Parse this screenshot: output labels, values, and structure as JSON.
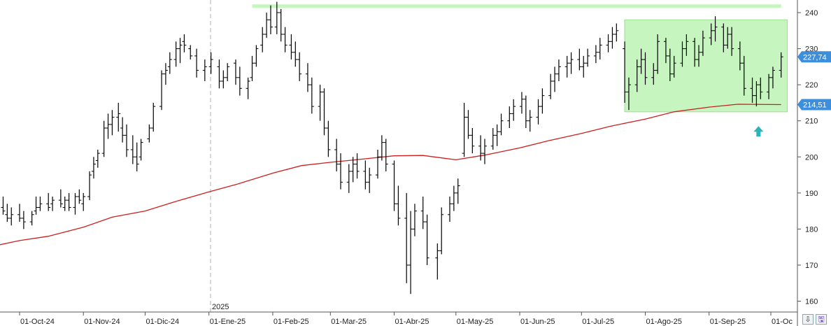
{
  "colors": {
    "background": "#ffffff",
    "bars": "#000000",
    "moving_average": "#cc1f1f",
    "range_fill": "#c6f5c0",
    "range_border": "#9be08f",
    "price_tag": "#3d8fdc",
    "arrow": "#2ab3b8",
    "grid": "#d8d8d8"
  },
  "icons": {
    "pin_button": "pin-icon",
    "save_button": "floppy-disk-icon"
  },
  "chart_data": {
    "type": "ohlc",
    "x_axis_labels": [
      "01-Oct-24",
      "01-Nov-24",
      "01-Dic-24",
      "01-Ene-25",
      "01-Feb-25",
      "01-Mar-25",
      "01-Abr-25",
      "01-May-25",
      "01-Jun-25",
      "01-Jul-25",
      "01-Ago-25",
      "01-Sep-25",
      "01-Oc"
    ],
    "year_marker": "2025",
    "y_ticks": [
      160,
      170,
      180,
      190,
      200,
      210,
      220,
      230,
      240
    ],
    "ylim": [
      157,
      243.5
    ],
    "price_labels": {
      "last_price": "227,74",
      "moving_average": "214,51"
    },
    "last_price_value": 227.74,
    "moving_average_value": 214.51,
    "resistance_line": {
      "from": "2025-01-22",
      "to": "2025-10-06",
      "value": 241.8
    },
    "range_box": {
      "from": "2025-07-22",
      "to": "2025-10-09",
      "high": 238,
      "low": 212.5
    },
    "arrow_marker": {
      "date": "2025-09-25",
      "value": 207
    },
    "moving_average_series": [
      [
        "2024-09-16",
        175
      ],
      [
        "2024-10-01",
        176.8
      ],
      [
        "2024-10-15",
        178
      ],
      [
        "2024-11-01",
        180.5
      ],
      [
        "2024-11-15",
        183.3
      ],
      [
        "2024-12-01",
        185
      ],
      [
        "2024-12-15",
        187.5
      ],
      [
        "2025-01-01",
        190.3
      ],
      [
        "2025-01-15",
        192.5
      ],
      [
        "2025-02-01",
        195.5
      ],
      [
        "2025-02-15",
        197.6
      ],
      [
        "2025-03-01",
        198.5
      ],
      [
        "2025-03-15",
        199.3
      ],
      [
        "2025-04-01",
        200.3
      ],
      [
        "2025-04-15",
        200.4
      ],
      [
        "2025-05-01",
        199.2
      ],
      [
        "2025-05-15",
        200.5
      ],
      [
        "2025-06-01",
        202.5
      ],
      [
        "2025-06-15",
        204.5
      ],
      [
        "2025-07-01",
        206.5
      ],
      [
        "2025-07-15",
        208.5
      ],
      [
        "2025-08-01",
        210.5
      ],
      [
        "2025-08-15",
        212.5
      ],
      [
        "2025-09-01",
        213.8
      ],
      [
        "2025-09-15",
        214.6
      ],
      [
        "2025-10-06",
        214.51
      ]
    ],
    "ohlc_bars": [
      [
        "2024-09-16",
        194,
        196,
        191,
        195
      ],
      [
        "2024-09-18",
        193,
        197,
        191,
        192
      ],
      [
        "2024-09-20",
        189,
        192,
        187,
        188
      ],
      [
        "2024-09-23",
        186,
        189,
        184,
        185
      ],
      [
        "2024-09-25",
        184,
        187,
        182,
        183
      ],
      [
        "2024-09-27",
        183,
        186,
        181,
        184
      ],
      [
        "2024-10-01",
        184,
        187,
        182,
        183
      ],
      [
        "2024-10-03",
        183,
        185,
        180,
        182
      ],
      [
        "2024-10-07",
        182,
        185,
        181,
        184
      ],
      [
        "2024-10-09",
        185,
        189,
        184,
        186
      ],
      [
        "2024-10-11",
        186,
        189,
        185,
        187
      ],
      [
        "2024-10-15",
        187,
        190,
        185,
        186
      ],
      [
        "2024-10-17",
        187,
        189,
        185,
        188
      ],
      [
        "2024-10-21",
        188,
        191,
        186,
        187
      ],
      [
        "2024-10-23",
        186,
        189,
        185,
        188
      ],
      [
        "2024-10-25",
        188,
        190,
        185,
        186
      ],
      [
        "2024-10-28",
        186,
        190,
        184,
        189
      ],
      [
        "2024-10-30",
        189,
        191,
        187,
        188
      ],
      [
        "2024-11-01",
        187,
        190,
        185,
        189
      ],
      [
        "2024-11-04",
        189,
        196,
        188,
        195
      ],
      [
        "2024-11-06",
        196,
        200,
        194,
        198
      ],
      [
        "2024-11-08",
        199,
        202,
        197,
        201
      ],
      [
        "2024-11-11",
        201,
        210,
        200,
        208
      ],
      [
        "2024-11-13",
        208,
        212,
        205,
        209
      ],
      [
        "2024-11-15",
        209,
        213,
        206,
        211
      ],
      [
        "2024-11-18",
        211,
        215,
        207,
        212
      ],
      [
        "2024-11-20",
        208,
        211,
        204,
        206
      ],
      [
        "2024-11-22",
        206,
        209,
        200,
        202
      ],
      [
        "2024-11-25",
        202,
        206,
        198,
        200
      ],
      [
        "2024-11-27",
        200,
        204,
        196,
        198
      ],
      [
        "2024-11-29",
        200,
        205,
        199,
        204
      ],
      [
        "2024-12-03",
        205,
        209,
        204,
        208
      ],
      [
        "2024-12-05",
        208,
        215,
        207,
        214
      ],
      [
        "2024-12-09",
        214,
        224,
        213,
        223
      ],
      [
        "2024-12-11",
        223,
        226,
        220,
        224
      ],
      [
        "2024-12-13",
        225,
        229,
        223,
        227
      ],
      [
        "2024-12-16",
        227,
        232,
        225,
        230
      ],
      [
        "2024-12-18",
        230,
        233,
        226,
        231
      ],
      [
        "2024-12-20",
        232,
        234,
        229,
        231
      ],
      [
        "2024-12-23",
        230,
        231,
        227,
        228
      ],
      [
        "2024-12-26",
        228,
        230,
        222,
        224
      ],
      [
        "2024-12-30",
        224,
        227,
        221,
        225
      ],
      [
        "2025-01-02",
        225,
        229,
        223,
        227
      ],
      [
        "2025-01-06",
        225,
        227,
        219,
        221
      ],
      [
        "2025-01-08",
        221,
        224,
        219,
        222
      ],
      [
        "2025-01-10",
        222,
        226,
        221,
        225
      ],
      [
        "2025-01-14",
        226,
        227,
        220,
        222
      ],
      [
        "2025-01-16",
        222,
        225,
        217,
        219
      ],
      [
        "2025-01-20",
        219,
        222,
        216,
        221
      ],
      [
        "2025-01-22",
        222,
        228,
        221,
        226
      ],
      [
        "2025-01-24",
        226,
        231,
        225,
        230
      ],
      [
        "2025-01-27",
        231,
        236,
        229,
        234
      ],
      [
        "2025-01-29",
        234,
        240,
        233,
        238
      ],
      [
        "2025-01-31",
        238,
        242,
        234,
        236
      ],
      [
        "2025-02-03",
        236,
        243,
        234,
        240
      ],
      [
        "2025-02-05",
        240,
        241,
        232,
        234
      ],
      [
        "2025-02-07",
        234,
        236,
        229,
        231
      ],
      [
        "2025-02-10",
        231,
        234,
        227,
        229
      ],
      [
        "2025-02-12",
        229,
        232,
        225,
        227
      ],
      [
        "2025-02-14",
        227,
        229,
        221,
        223
      ],
      [
        "2025-02-18",
        223,
        226,
        218,
        220
      ],
      [
        "2025-02-20",
        220,
        222,
        212,
        214
      ],
      [
        "2025-02-24",
        214,
        220,
        210,
        218
      ],
      [
        "2025-02-26",
        218,
        219,
        206,
        208
      ],
      [
        "2025-02-28",
        208,
        210,
        200,
        202
      ],
      [
        "2025-03-04",
        202,
        205,
        196,
        198
      ],
      [
        "2025-03-06",
        198,
        201,
        191,
        193
      ],
      [
        "2025-03-10",
        193,
        198,
        190,
        196
      ],
      [
        "2025-03-12",
        196,
        200,
        193,
        198
      ],
      [
        "2025-03-14",
        198,
        201,
        194,
        196
      ],
      [
        "2025-03-18",
        196,
        199,
        191,
        193
      ],
      [
        "2025-03-20",
        193,
        197,
        190,
        195
      ],
      [
        "2025-03-24",
        195,
        202,
        194,
        200
      ],
      [
        "2025-03-26",
        200,
        206,
        199,
        204
      ],
      [
        "2025-03-28",
        204,
        205,
        196,
        198
      ],
      [
        "2025-04-01",
        198,
        199,
        185,
        187
      ],
      [
        "2025-04-03",
        187,
        192,
        181,
        183
      ],
      [
        "2025-04-07",
        183,
        190,
        165,
        170
      ],
      [
        "2025-04-09",
        170,
        185,
        162,
        180
      ],
      [
        "2025-04-11",
        180,
        187,
        178,
        185
      ],
      [
        "2025-04-15",
        185,
        189,
        180,
        182
      ],
      [
        "2025-04-17",
        182,
        184,
        170,
        172
      ],
      [
        "2025-04-22",
        172,
        176,
        166,
        174
      ],
      [
        "2025-04-24",
        174,
        186,
        173,
        184
      ],
      [
        "2025-04-28",
        184,
        189,
        182,
        187
      ],
      [
        "2025-04-30",
        187,
        192,
        185,
        190
      ],
      [
        "2025-05-02",
        190,
        194,
        187,
        192
      ],
      [
        "2025-05-05",
        201,
        215,
        200,
        211
      ],
      [
        "2025-05-07",
        211,
        213,
        205,
        206
      ],
      [
        "2025-05-09",
        206,
        208,
        201,
        203
      ],
      [
        "2025-05-13",
        203,
        206,
        199,
        201
      ],
      [
        "2025-05-15",
        201,
        205,
        198,
        203
      ],
      [
        "2025-05-19",
        203,
        208,
        202,
        206
      ],
      [
        "2025-05-21",
        206,
        209,
        203,
        207
      ],
      [
        "2025-05-23",
        207,
        212,
        206,
        210
      ],
      [
        "2025-05-27",
        210,
        214,
        208,
        212
      ],
      [
        "2025-05-29",
        212,
        216,
        210,
        214
      ],
      [
        "2025-06-02",
        214,
        218,
        212,
        216
      ],
      [
        "2025-06-04",
        216,
        217,
        208,
        210
      ],
      [
        "2025-06-06",
        210,
        213,
        207,
        211
      ],
      [
        "2025-06-10",
        211,
        216,
        209,
        214
      ],
      [
        "2025-06-12",
        214,
        219,
        212,
        217
      ],
      [
        "2025-06-16",
        217,
        223,
        216,
        221
      ],
      [
        "2025-06-18",
        221,
        225,
        218,
        223
      ],
      [
        "2025-06-20",
        223,
        227,
        221,
        225
      ],
      [
        "2025-06-24",
        225,
        228,
        222,
        226
      ],
      [
        "2025-06-26",
        226,
        229,
        223,
        227
      ],
      [
        "2025-06-30",
        227,
        230,
        224,
        225
      ],
      [
        "2025-07-02",
        225,
        228,
        222,
        226
      ],
      [
        "2025-07-04",
        226,
        230,
        225,
        228
      ],
      [
        "2025-07-08",
        228,
        231,
        226,
        229
      ],
      [
        "2025-07-10",
        229,
        233,
        227,
        231
      ],
      [
        "2025-07-14",
        231,
        234,
        229,
        232
      ],
      [
        "2025-07-16",
        232,
        236,
        230,
        234
      ],
      [
        "2025-07-18",
        234,
        237,
        232,
        235
      ],
      [
        "2025-07-22",
        230,
        232,
        215,
        218
      ],
      [
        "2025-07-24",
        218,
        222,
        213,
        220
      ],
      [
        "2025-07-28",
        220,
        227,
        218,
        225
      ],
      [
        "2025-07-30",
        225,
        230,
        223,
        227
      ],
      [
        "2025-08-01",
        227,
        229,
        220,
        222
      ],
      [
        "2025-08-05",
        222,
        226,
        220,
        224
      ],
      [
        "2025-08-07",
        224,
        234,
        223,
        232
      ],
      [
        "2025-08-11",
        232,
        233,
        226,
        228
      ],
      [
        "2025-08-13",
        228,
        230,
        221,
        223
      ],
      [
        "2025-08-15",
        223,
        228,
        222,
        226
      ],
      [
        "2025-08-19",
        226,
        232,
        225,
        230
      ],
      [
        "2025-08-21",
        230,
        234,
        228,
        232
      ],
      [
        "2025-08-25",
        232,
        233,
        225,
        227
      ],
      [
        "2025-08-27",
        227,
        231,
        225,
        229
      ],
      [
        "2025-08-29",
        229,
        235,
        228,
        233
      ],
      [
        "2025-09-02",
        233,
        237,
        231,
        235
      ],
      [
        "2025-09-04",
        235,
        239,
        232,
        236
      ],
      [
        "2025-09-08",
        236,
        237,
        229,
        231
      ],
      [
        "2025-09-10",
        231,
        236,
        230,
        234
      ],
      [
        "2025-09-12",
        234,
        236,
        228,
        230
      ],
      [
        "2025-09-16",
        230,
        232,
        224,
        226
      ],
      [
        "2025-09-18",
        226,
        228,
        217,
        219
      ],
      [
        "2025-09-22",
        219,
        222,
        215,
        217
      ],
      [
        "2025-09-24",
        217,
        221,
        214,
        220
      ],
      [
        "2025-09-26",
        220,
        222,
        216,
        218
      ],
      [
        "2025-09-30",
        218,
        223,
        216,
        222
      ],
      [
        "2025-10-02",
        222,
        225,
        219,
        224
      ],
      [
        "2025-10-06",
        224,
        229,
        222,
        227.74
      ]
    ]
  }
}
